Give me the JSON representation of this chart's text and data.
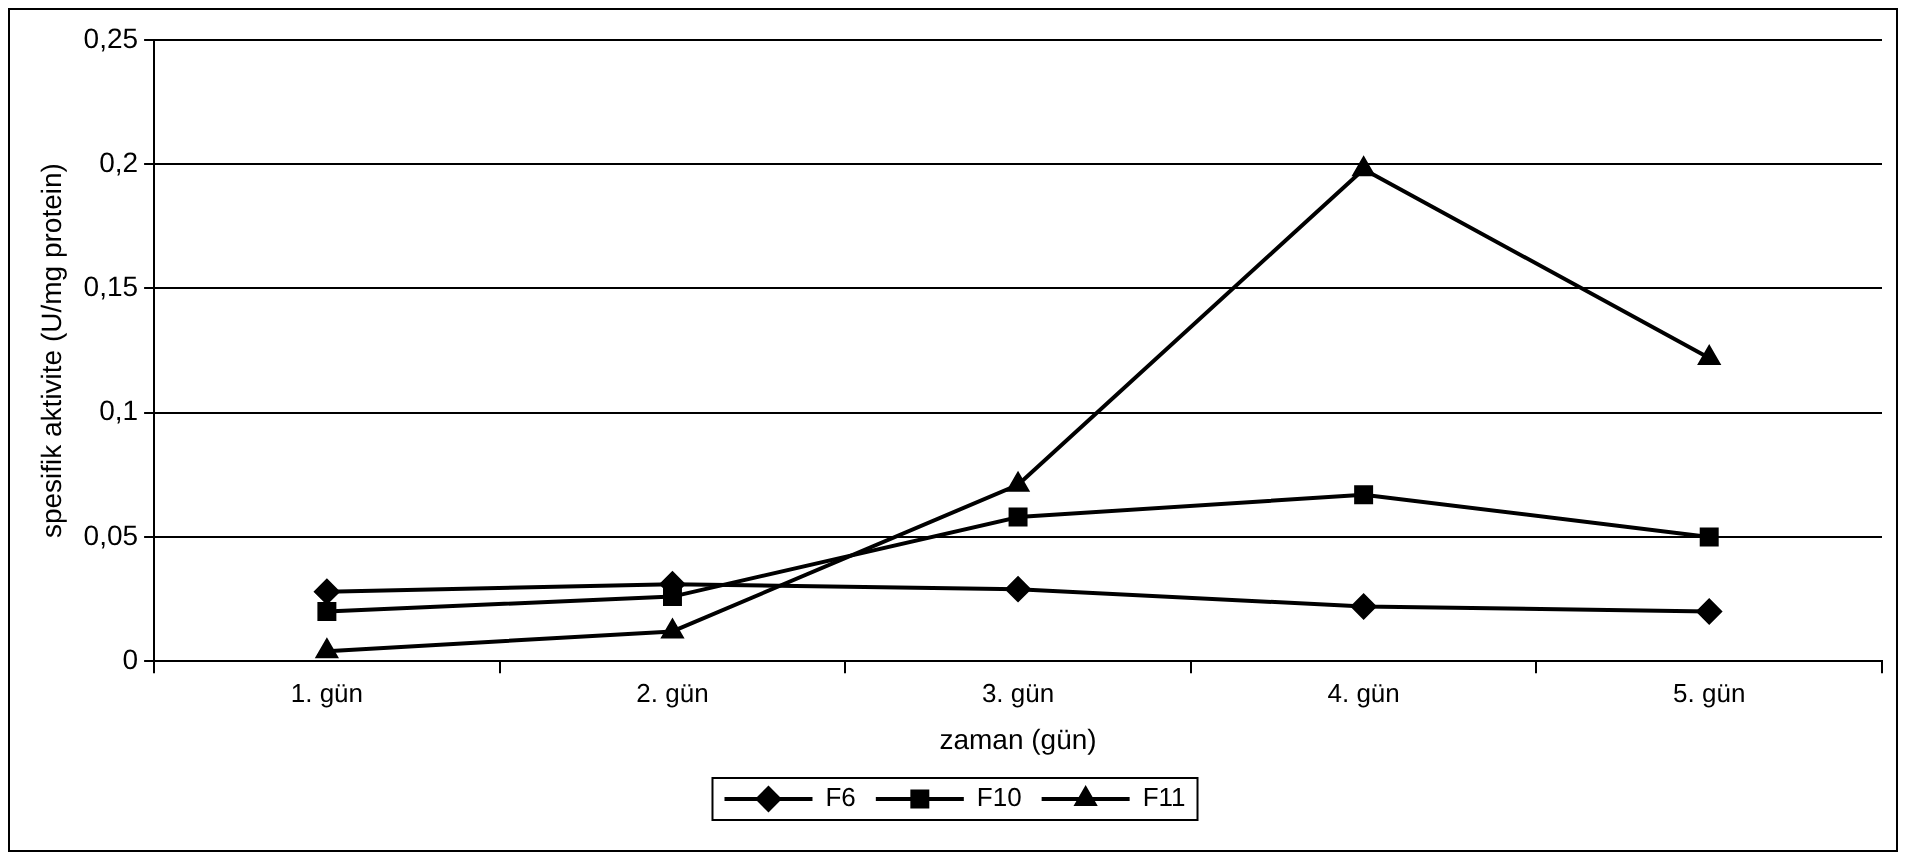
{
  "chart_data": {
    "type": "line",
    "xlabel": "zaman (gün)",
    "ylabel": "spesifik aktivite (U/mg protein)",
    "categories": [
      "1. gün",
      "2. gün",
      "3. gün",
      "4. gün",
      "5. gün"
    ],
    "series": [
      {
        "name": "F6",
        "color": "#000000",
        "marker": "diamond",
        "values": [
          0.028,
          0.031,
          0.029,
          0.022,
          0.02
        ]
      },
      {
        "name": "F10",
        "color": "#000000",
        "marker": "square",
        "values": [
          0.02,
          0.026,
          0.058,
          0.067,
          0.05
        ]
      },
      {
        "name": "F11",
        "color": "#000000",
        "marker": "triangle",
        "values": [
          0.004,
          0.012,
          0.071,
          0.198,
          0.122
        ]
      }
    ],
    "ylim": [
      0,
      0.25
    ],
    "yticks": [
      0,
      {
        "value": 0.05,
        "label": "0,05"
      },
      {
        "value": 0.1,
        "label": "0,1"
      },
      {
        "value": 0.15,
        "label": "0,15"
      },
      {
        "value": 0.2,
        "label": "0,2"
      },
      {
        "value": 0.25,
        "label": "0,25"
      }
    ],
    "grid": "y",
    "legend": "bottom",
    "line_style": "solid"
  }
}
